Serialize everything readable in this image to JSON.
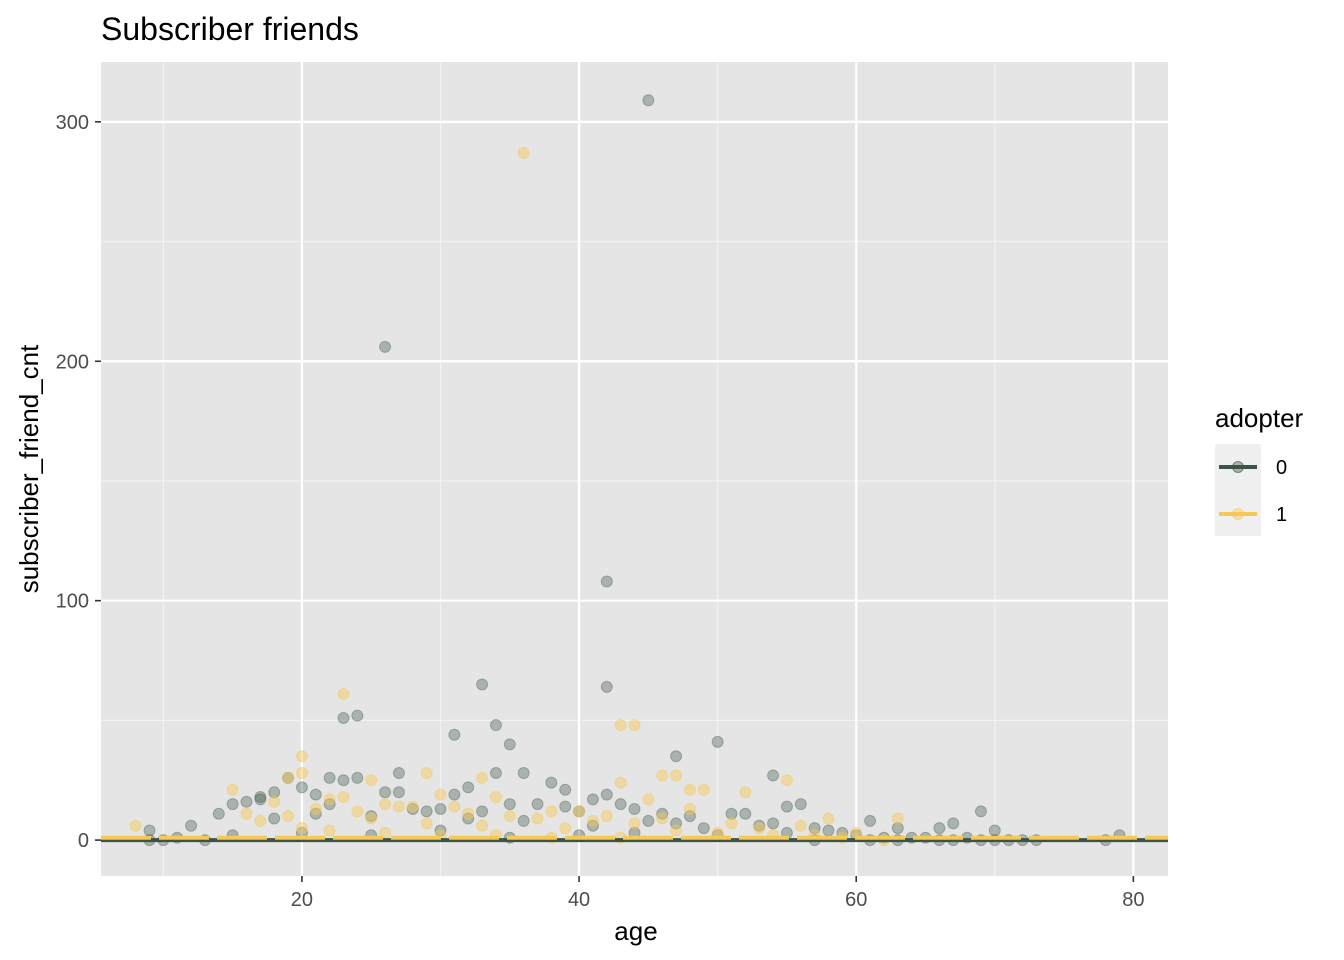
{
  "chart_data": {
    "type": "scatter",
    "title": "Subscriber friends",
    "xlabel": "age",
    "ylabel": "subscriber_friend_cnt",
    "xlim": [
      5.5,
      82.5
    ],
    "ylim": [
      -15,
      325
    ],
    "x_ticks": [
      20,
      40,
      60,
      80
    ],
    "y_ticks": [
      0,
      100,
      200,
      300
    ],
    "grid": true,
    "legend": {
      "title": "adopter",
      "position": "right"
    },
    "colors": {
      "panel_bg": "#e5e5e5",
      "grid": "#ffffff",
      "series_0": "#3c5446",
      "series_1": "#f6c855"
    },
    "series": [
      {
        "name": "0",
        "color": "#3c5446",
        "points": [
          [
            45,
            309
          ],
          [
            26,
            206
          ],
          [
            42,
            108
          ],
          [
            33,
            65
          ],
          [
            42,
            64
          ],
          [
            23,
            51
          ],
          [
            24,
            52
          ],
          [
            34,
            48
          ],
          [
            31,
            44
          ],
          [
            35,
            40
          ],
          [
            50,
            41
          ],
          [
            47,
            35
          ],
          [
            27,
            28
          ],
          [
            34,
            28
          ],
          [
            36,
            28
          ],
          [
            54,
            27
          ],
          [
            22,
            26
          ],
          [
            23,
            25
          ],
          [
            24,
            26
          ],
          [
            19,
            26
          ],
          [
            38,
            24
          ],
          [
            39,
            21
          ],
          [
            20,
            22
          ],
          [
            17,
            18
          ],
          [
            17,
            17
          ],
          [
            18,
            20
          ],
          [
            21,
            19
          ],
          [
            26,
            20
          ],
          [
            27,
            20
          ],
          [
            32,
            22
          ],
          [
            31,
            19
          ],
          [
            41,
            17
          ],
          [
            42,
            19
          ],
          [
            43,
            15
          ],
          [
            44,
            13
          ],
          [
            37,
            15
          ],
          [
            15,
            15
          ],
          [
            16,
            16
          ],
          [
            22,
            15
          ],
          [
            28,
            13
          ],
          [
            29,
            12
          ],
          [
            30,
            13
          ],
          [
            33,
            12
          ],
          [
            35,
            15
          ],
          [
            39,
            14
          ],
          [
            40,
            12
          ],
          [
            46,
            11
          ],
          [
            48,
            10
          ],
          [
            51,
            11
          ],
          [
            52,
            11
          ],
          [
            55,
            14
          ],
          [
            56,
            15
          ],
          [
            61,
            8
          ],
          [
            66,
            5
          ],
          [
            67,
            7
          ],
          [
            69,
            12
          ],
          [
            70,
            4
          ],
          [
            12,
            6
          ],
          [
            14,
            11
          ],
          [
            9,
            4
          ],
          [
            63,
            5
          ],
          [
            57,
            5
          ],
          [
            58,
            4
          ],
          [
            53,
            6
          ],
          [
            49,
            5
          ],
          [
            21,
            11
          ],
          [
            25,
            10
          ],
          [
            18,
            9
          ],
          [
            32,
            9
          ],
          [
            36,
            8
          ],
          [
            41,
            6
          ],
          [
            45,
            8
          ],
          [
            47,
            7
          ],
          [
            54,
            7
          ],
          [
            59,
            3
          ],
          [
            60,
            2
          ],
          [
            62,
            1
          ],
          [
            64,
            1
          ],
          [
            65,
            1
          ],
          [
            68,
            1
          ],
          [
            71,
            0
          ],
          [
            72,
            0
          ],
          [
            73,
            0
          ],
          [
            78,
            0
          ],
          [
            79,
            2
          ],
          [
            9,
            0
          ],
          [
            10,
            0
          ],
          [
            11,
            1
          ],
          [
            13,
            0
          ],
          [
            15,
            2
          ],
          [
            20,
            3
          ],
          [
            25,
            2
          ],
          [
            30,
            4
          ],
          [
            35,
            1
          ],
          [
            40,
            2
          ],
          [
            44,
            3
          ],
          [
            50,
            2
          ],
          [
            55,
            3
          ],
          [
            57,
            0
          ],
          [
            61,
            0
          ],
          [
            63,
            0
          ],
          [
            66,
            0
          ],
          [
            67,
            0
          ],
          [
            69,
            0
          ],
          [
            70,
            0
          ]
        ]
      },
      {
        "name": "1",
        "color": "#f6c855",
        "points": [
          [
            36,
            287
          ],
          [
            23,
            61
          ],
          [
            43,
            48
          ],
          [
            44,
            48
          ],
          [
            20,
            35
          ],
          [
            46,
            27
          ],
          [
            47,
            27
          ],
          [
            33,
            26
          ],
          [
            19,
            26
          ],
          [
            20,
            28
          ],
          [
            25,
            25
          ],
          [
            55,
            25
          ],
          [
            29,
            28
          ],
          [
            43,
            24
          ],
          [
            15,
            21
          ],
          [
            48,
            21
          ],
          [
            49,
            21
          ],
          [
            52,
            20
          ],
          [
            30,
            19
          ],
          [
            34,
            18
          ],
          [
            45,
            17
          ],
          [
            18,
            16
          ],
          [
            22,
            17
          ],
          [
            23,
            18
          ],
          [
            26,
            15
          ],
          [
            28,
            14
          ],
          [
            31,
            14
          ],
          [
            38,
            12
          ],
          [
            40,
            12
          ],
          [
            42,
            10
          ],
          [
            48,
            13
          ],
          [
            58,
            9
          ],
          [
            63,
            9
          ],
          [
            8,
            6
          ],
          [
            16,
            11
          ],
          [
            21,
            13
          ],
          [
            24,
            12
          ],
          [
            27,
            14
          ],
          [
            32,
            11
          ],
          [
            35,
            10
          ],
          [
            37,
            9
          ],
          [
            41,
            8
          ],
          [
            46,
            9
          ],
          [
            51,
            7
          ],
          [
            53,
            5
          ],
          [
            56,
            6
          ],
          [
            60,
            3
          ],
          [
            17,
            8
          ],
          [
            19,
            10
          ],
          [
            25,
            9
          ],
          [
            29,
            7
          ],
          [
            33,
            6
          ],
          [
            39,
            5
          ],
          [
            44,
            7
          ],
          [
            47,
            4
          ],
          [
            50,
            3
          ],
          [
            54,
            2
          ],
          [
            57,
            2
          ],
          [
            59,
            1
          ],
          [
            62,
            0
          ],
          [
            20,
            5
          ],
          [
            22,
            4
          ],
          [
            26,
            3
          ],
          [
            30,
            2
          ],
          [
            34,
            2
          ],
          [
            38,
            1
          ],
          [
            43,
            1
          ]
        ]
      }
    ],
    "lines": [
      {
        "name": "0",
        "color": "#3c5446",
        "x": [
          5.5,
          82.5
        ],
        "y": [
          0,
          0
        ],
        "dashed": false
      },
      {
        "name": "1",
        "color": "#f6c855",
        "x": [
          5.5,
          82.5
        ],
        "y": [
          1,
          1
        ],
        "dashed": true
      }
    ]
  }
}
